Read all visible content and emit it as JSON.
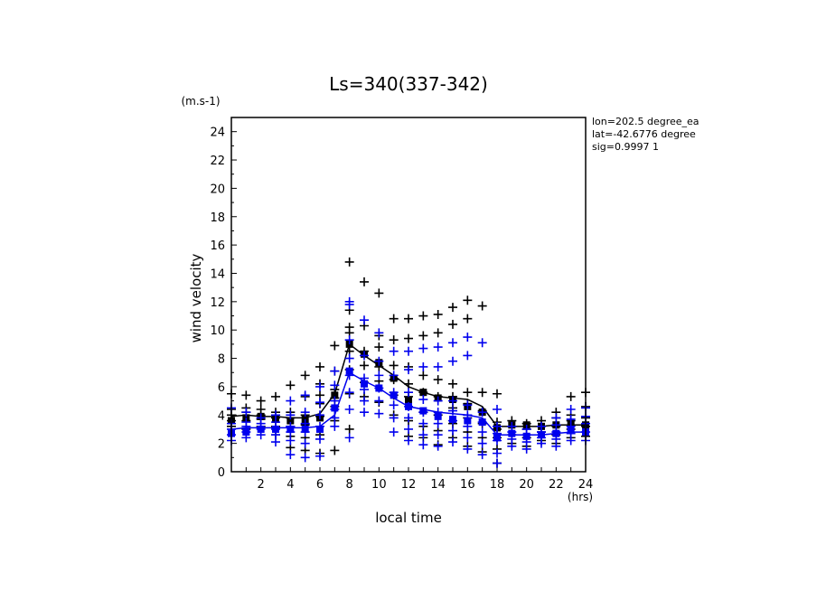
{
  "chart_data": {
    "type": "scatter",
    "title": "Ls=340(337-342)",
    "ylabel": "wind velocity",
    "yunit": "(m.s-1)",
    "xlabel": "local time",
    "xunit": "(hrs)",
    "xlim": [
      0,
      24
    ],
    "ylim": [
      0,
      25
    ],
    "xticks": [
      "2",
      "4",
      "6",
      "8",
      "10",
      "12",
      "14",
      "16",
      "18",
      "20",
      "22",
      "24"
    ],
    "yticks": [
      "0",
      "2",
      "4",
      "6",
      "8",
      "10",
      "12",
      "14",
      "16",
      "18",
      "20",
      "22",
      "24"
    ],
    "info": [
      "lon=202.5 degree_ea",
      "lat=-42.6776 degree",
      "sig=0.9997 1"
    ],
    "hours": [
      0,
      1,
      2,
      3,
      4,
      5,
      6,
      7,
      8,
      9,
      10,
      11,
      12,
      13,
      14,
      15,
      16,
      17,
      18,
      19,
      20,
      21,
      22,
      23,
      24
    ],
    "series": [
      {
        "name": "black",
        "color": "#000000",
        "mean_line": [
          3.9,
          4.0,
          3.9,
          3.9,
          3.8,
          3.8,
          4.1,
          5.5,
          9.0,
          8.2,
          7.5,
          6.8,
          6.0,
          5.6,
          5.3,
          5.2,
          5.1,
          4.6,
          3.2,
          3.2,
          3.2,
          3.2,
          3.3,
          3.3,
          3.3
        ],
        "mean_markers": [
          3.6,
          3.8,
          3.9,
          3.7,
          3.6,
          3.7,
          3.8,
          5.4,
          9.0,
          8.3,
          7.7,
          6.6,
          5.0,
          5.6,
          5.2,
          5.1,
          4.6,
          4.2,
          3.1,
          3.3,
          3.3,
          3.2,
          3.3,
          3.4,
          3.3
        ],
        "points": [
          [
            0,
            3.2
          ],
          [
            0,
            3.6
          ],
          [
            0,
            4.0
          ],
          [
            0,
            4.4
          ],
          [
            0,
            5.5
          ],
          [
            1,
            3.0
          ],
          [
            1,
            3.6
          ],
          [
            1,
            4.2
          ],
          [
            1,
            4.5
          ],
          [
            1,
            5.4
          ],
          [
            2,
            3.2
          ],
          [
            2,
            3.7
          ],
          [
            2,
            4.0
          ],
          [
            2,
            4.4
          ],
          [
            2,
            5.0
          ],
          [
            3,
            2.6
          ],
          [
            3,
            3.2
          ],
          [
            3,
            3.8
          ],
          [
            3,
            4.2
          ],
          [
            3,
            5.3
          ],
          [
            4,
            1.7
          ],
          [
            4,
            2.5
          ],
          [
            4,
            3.2
          ],
          [
            4,
            3.8
          ],
          [
            4,
            4.2
          ],
          [
            4,
            6.1
          ],
          [
            5,
            1.5
          ],
          [
            5,
            2.4
          ],
          [
            5,
            3.3
          ],
          [
            5,
            4.0
          ],
          [
            5,
            5.3
          ],
          [
            5,
            6.8
          ],
          [
            6,
            1.3
          ],
          [
            6,
            2.6
          ],
          [
            6,
            3.9
          ],
          [
            6,
            4.8
          ],
          [
            6,
            5.4
          ],
          [
            6,
            6.2
          ],
          [
            6,
            7.4
          ],
          [
            7,
            1.5
          ],
          [
            7,
            3.6
          ],
          [
            7,
            4.6
          ],
          [
            7,
            5.2
          ],
          [
            7,
            5.8
          ],
          [
            7,
            7.1
          ],
          [
            7,
            8.9
          ],
          [
            8,
            3.0
          ],
          [
            8,
            5.5
          ],
          [
            8,
            7.2
          ],
          [
            8,
            8.5
          ],
          [
            8,
            9.8
          ],
          [
            8,
            10.2
          ],
          [
            8,
            11.4
          ],
          [
            8,
            14.8
          ],
          [
            9,
            5.3
          ],
          [
            9,
            6.3
          ],
          [
            9,
            7.5
          ],
          [
            9,
            8.5
          ],
          [
            9,
            10.3
          ],
          [
            9,
            13.4
          ],
          [
            10,
            4.9
          ],
          [
            10,
            6.4
          ],
          [
            10,
            7.4
          ],
          [
            10,
            8.8
          ],
          [
            10,
            9.6
          ],
          [
            10,
            12.6
          ],
          [
            11,
            4.0
          ],
          [
            11,
            5.4
          ],
          [
            11,
            6.5
          ],
          [
            11,
            7.5
          ],
          [
            11,
            9.3
          ],
          [
            11,
            10.8
          ],
          [
            12,
            2.5
          ],
          [
            12,
            3.6
          ],
          [
            12,
            5.3
          ],
          [
            12,
            6.2
          ],
          [
            12,
            7.4
          ],
          [
            12,
            9.4
          ],
          [
            12,
            10.8
          ],
          [
            13,
            2.4
          ],
          [
            13,
            3.2
          ],
          [
            13,
            4.2
          ],
          [
            13,
            5.6
          ],
          [
            13,
            6.8
          ],
          [
            13,
            9.6
          ],
          [
            13,
            11.0
          ],
          [
            14,
            1.9
          ],
          [
            14,
            2.9
          ],
          [
            14,
            4.0
          ],
          [
            14,
            5.3
          ],
          [
            14,
            6.5
          ],
          [
            14,
            9.8
          ],
          [
            14,
            11.1
          ],
          [
            15,
            2.4
          ],
          [
            15,
            3.4
          ],
          [
            15,
            4.5
          ],
          [
            15,
            5.3
          ],
          [
            15,
            6.2
          ],
          [
            15,
            10.4
          ],
          [
            15,
            11.6
          ],
          [
            16,
            1.8
          ],
          [
            16,
            2.8
          ],
          [
            16,
            3.8
          ],
          [
            16,
            4.8
          ],
          [
            16,
            5.6
          ],
          [
            16,
            10.8
          ],
          [
            16,
            12.1
          ],
          [
            17,
            1.4
          ],
          [
            17,
            2.4
          ],
          [
            17,
            3.4
          ],
          [
            17,
            4.3
          ],
          [
            17,
            5.6
          ],
          [
            17,
            11.7
          ],
          [
            18,
            0.6
          ],
          [
            18,
            1.6
          ],
          [
            18,
            2.4
          ],
          [
            18,
            3.0
          ],
          [
            18,
            3.5
          ],
          [
            18,
            5.5
          ],
          [
            19,
            2.0
          ],
          [
            19,
            2.6
          ],
          [
            19,
            3.2
          ],
          [
            19,
            3.6
          ],
          [
            20,
            1.8
          ],
          [
            20,
            2.4
          ],
          [
            20,
            3.0
          ],
          [
            20,
            3.4
          ],
          [
            21,
            2.2
          ],
          [
            21,
            2.8
          ],
          [
            21,
            3.2
          ],
          [
            21,
            3.6
          ],
          [
            22,
            2.0
          ],
          [
            22,
            2.6
          ],
          [
            22,
            3.2
          ],
          [
            22,
            3.8
          ],
          [
            22,
            4.2
          ],
          [
            23,
            2.4
          ],
          [
            23,
            3.0
          ],
          [
            23,
            3.6
          ],
          [
            23,
            4.0
          ],
          [
            23,
            5.3
          ],
          [
            24,
            2.5
          ],
          [
            24,
            3.2
          ],
          [
            24,
            3.8
          ],
          [
            24,
            4.6
          ],
          [
            24,
            5.6
          ]
        ]
      },
      {
        "name": "blue",
        "color": "#0000ee",
        "mean_line": [
          3.0,
          3.1,
          3.1,
          3.1,
          3.1,
          3.1,
          3.2,
          4.0,
          7.0,
          6.4,
          5.9,
          5.2,
          4.6,
          4.4,
          4.2,
          4.1,
          4.0,
          3.8,
          2.6,
          2.6,
          2.6,
          2.6,
          2.7,
          2.8,
          2.8
        ],
        "mean_markers": [
          2.7,
          2.8,
          3.0,
          3.0,
          3.0,
          3.0,
          3.0,
          4.5,
          7.1,
          6.2,
          5.9,
          5.4,
          4.6,
          4.3,
          3.9,
          3.7,
          3.6,
          3.5,
          2.4,
          2.7,
          2.5,
          2.6,
          2.7,
          2.9,
          2.8
        ],
        "points": [
          [
            0,
            2.2
          ],
          [
            0,
            2.6
          ],
          [
            0,
            3.0
          ],
          [
            0,
            3.4
          ],
          [
            0,
            4.5
          ],
          [
            1,
            2.4
          ],
          [
            1,
            2.8
          ],
          [
            1,
            3.2
          ],
          [
            1,
            3.5
          ],
          [
            1,
            4.2
          ],
          [
            2,
            2.6
          ],
          [
            2,
            3.0
          ],
          [
            2,
            3.4
          ],
          [
            2,
            3.8
          ],
          [
            3,
            2.1
          ],
          [
            3,
            2.6
          ],
          [
            3,
            3.0
          ],
          [
            3,
            3.5
          ],
          [
            3,
            4.0
          ],
          [
            4,
            1.2
          ],
          [
            4,
            2.2
          ],
          [
            4,
            2.8
          ],
          [
            4,
            3.2
          ],
          [
            4,
            4.0
          ],
          [
            4,
            5.0
          ],
          [
            5,
            1.0
          ],
          [
            5,
            2.0
          ],
          [
            5,
            2.8
          ],
          [
            5,
            3.4
          ],
          [
            5,
            4.2
          ],
          [
            5,
            5.4
          ],
          [
            6,
            1.1
          ],
          [
            6,
            2.3
          ],
          [
            6,
            3.2
          ],
          [
            6,
            4.0
          ],
          [
            6,
            4.9
          ],
          [
            6,
            6.0
          ],
          [
            7,
            3.2
          ],
          [
            7,
            3.8
          ],
          [
            7,
            4.4
          ],
          [
            7,
            5.0
          ],
          [
            7,
            6.1
          ],
          [
            7,
            7.1
          ],
          [
            8,
            2.4
          ],
          [
            8,
            4.4
          ],
          [
            8,
            5.6
          ],
          [
            8,
            6.8
          ],
          [
            8,
            8.0
          ],
          [
            8,
            9.3
          ],
          [
            8,
            11.8
          ],
          [
            8,
            12.0
          ],
          [
            9,
            4.2
          ],
          [
            9,
            5.0
          ],
          [
            9,
            5.8
          ],
          [
            9,
            6.6
          ],
          [
            9,
            8.2
          ],
          [
            9,
            10.7
          ],
          [
            10,
            4.1
          ],
          [
            10,
            5.0
          ],
          [
            10,
            5.9
          ],
          [
            10,
            6.8
          ],
          [
            10,
            7.8
          ],
          [
            10,
            9.8
          ],
          [
            11,
            2.8
          ],
          [
            11,
            3.8
          ],
          [
            11,
            4.7
          ],
          [
            11,
            5.6
          ],
          [
            11,
            6.8
          ],
          [
            11,
            8.5
          ],
          [
            12,
            2.2
          ],
          [
            12,
            3.0
          ],
          [
            12,
            3.8
          ],
          [
            12,
            4.6
          ],
          [
            12,
            5.6
          ],
          [
            12,
            7.2
          ],
          [
            12,
            8.5
          ],
          [
            13,
            1.9
          ],
          [
            13,
            2.6
          ],
          [
            13,
            3.4
          ],
          [
            13,
            4.2
          ],
          [
            13,
            5.1
          ],
          [
            13,
            7.4
          ],
          [
            13,
            8.7
          ],
          [
            14,
            1.8
          ],
          [
            14,
            2.6
          ],
          [
            14,
            3.4
          ],
          [
            14,
            4.2
          ],
          [
            14,
            5.0
          ],
          [
            14,
            7.4
          ],
          [
            14,
            8.8
          ],
          [
            15,
            2.1
          ],
          [
            15,
            2.9
          ],
          [
            15,
            3.6
          ],
          [
            15,
            4.3
          ],
          [
            15,
            5.0
          ],
          [
            15,
            7.8
          ],
          [
            15,
            9.1
          ],
          [
            16,
            1.6
          ],
          [
            16,
            2.4
          ],
          [
            16,
            3.2
          ],
          [
            16,
            4.0
          ],
          [
            16,
            4.7
          ],
          [
            16,
            8.2
          ],
          [
            16,
            9.5
          ],
          [
            17,
            1.2
          ],
          [
            17,
            2.0
          ],
          [
            17,
            2.8
          ],
          [
            17,
            3.5
          ],
          [
            17,
            4.2
          ],
          [
            17,
            9.1
          ],
          [
            18,
            0.6
          ],
          [
            18,
            1.3
          ],
          [
            18,
            2.2
          ],
          [
            18,
            2.7
          ],
          [
            18,
            3.2
          ],
          [
            18,
            4.4
          ],
          [
            19,
            1.8
          ],
          [
            19,
            2.3
          ],
          [
            19,
            2.8
          ],
          [
            19,
            3.2
          ],
          [
            20,
            1.6
          ],
          [
            20,
            2.1
          ],
          [
            20,
            2.6
          ],
          [
            20,
            3.0
          ],
          [
            21,
            2.0
          ],
          [
            21,
            2.4
          ],
          [
            21,
            2.8
          ],
          [
            21,
            3.2
          ],
          [
            22,
            1.8
          ],
          [
            22,
            2.3
          ],
          [
            22,
            2.8
          ],
          [
            22,
            3.3
          ],
          [
            22,
            3.8
          ],
          [
            23,
            2.2
          ],
          [
            23,
            2.7
          ],
          [
            23,
            3.2
          ],
          [
            23,
            3.7
          ],
          [
            23,
            4.4
          ],
          [
            24,
            2.2
          ],
          [
            24,
            2.8
          ],
          [
            24,
            3.4
          ],
          [
            24,
            3.9
          ],
          [
            24,
            4.5
          ]
        ]
      }
    ]
  }
}
